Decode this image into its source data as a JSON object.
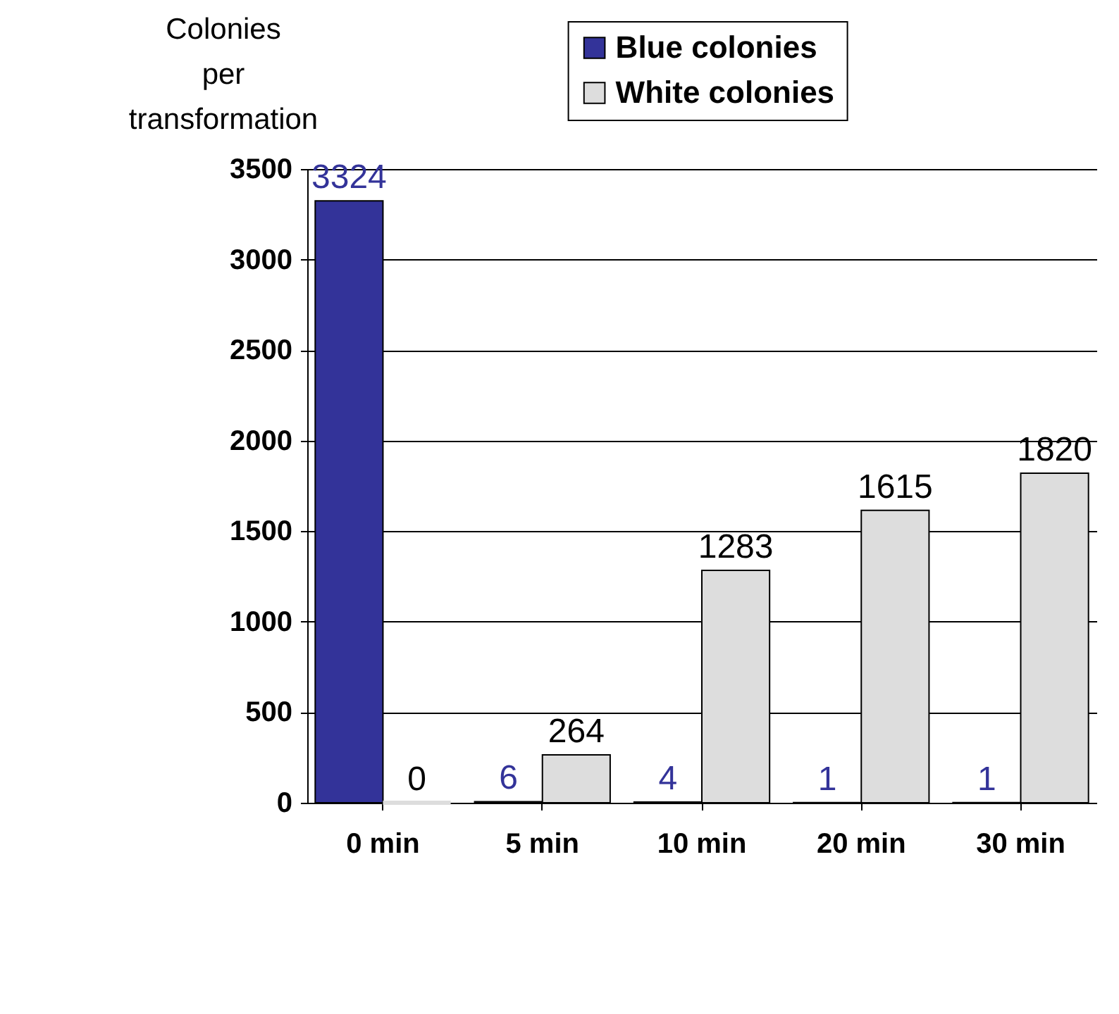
{
  "chart_data": {
    "type": "bar",
    "ylabel": "Colonies per transformation",
    "categories": [
      "0 min",
      "5 min",
      "10 min",
      "20 min",
      "30 min"
    ],
    "series": [
      {
        "name": "Blue colonies",
        "color": "#333399",
        "values": [
          3324,
          6,
          4,
          1,
          1
        ]
      },
      {
        "name": "White colonies",
        "color": "#dddddd",
        "values": [
          0,
          264,
          1283,
          1615,
          1820
        ]
      }
    ],
    "ylim": [
      0,
      3500
    ],
    "yticks": [
      0,
      500,
      1000,
      1500,
      2000,
      2500,
      3000,
      3500
    ],
    "grid": "y",
    "legend": "top right",
    "data_labels": true
  }
}
